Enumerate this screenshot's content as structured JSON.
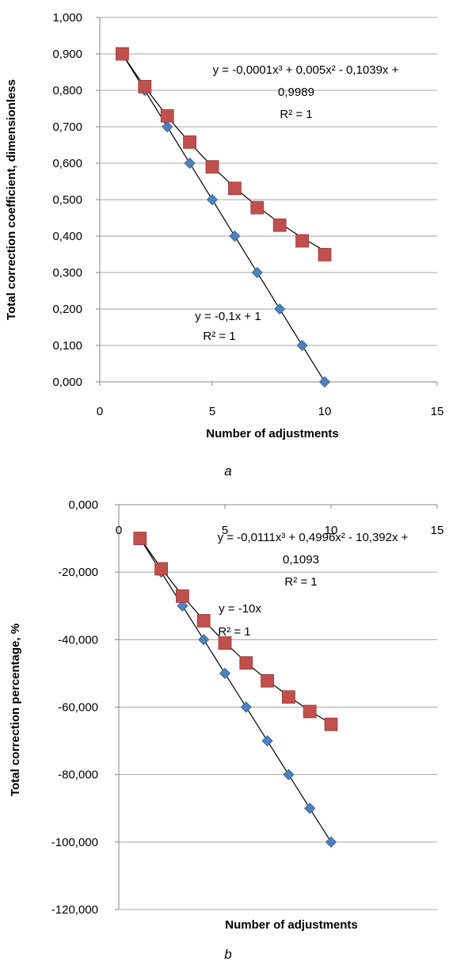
{
  "colors": {
    "linear_marker": "#4f81bd",
    "linear_marker_stroke": "#2f5f9a",
    "poly_marker": "#c0504d",
    "poly_marker_stroke": "#9a3b39",
    "trendline": "#000000",
    "gridline": "#a6a6a6",
    "axis": "#868686"
  },
  "chart_data": [
    {
      "type": "scatter",
      "caption": "a",
      "xlabel": "Number of adjustments",
      "ylabel": "Total correction coefficient, dimensionless",
      "xlim": [
        0,
        15
      ],
      "ylim": [
        0,
        1
      ],
      "x_ticks": [
        0,
        5,
        10,
        15
      ],
      "y_ticks": [
        0,
        0.1,
        0.2,
        0.3,
        0.4,
        0.5,
        0.6,
        0.7,
        0.8,
        0.9,
        1.0
      ],
      "x_tick_labels": [
        "0",
        "5",
        "10",
        "15"
      ],
      "y_tick_labels": [
        "0,000",
        "0,100",
        "0,200",
        "0,300",
        "0,400",
        "0,500",
        "0,600",
        "0,700",
        "0,800",
        "0,900",
        "1,000"
      ],
      "grid": "horizontal",
      "series": [
        {
          "marker": "diamond",
          "x": [
            1,
            2,
            3,
            4,
            5,
            6,
            7,
            8,
            9,
            10
          ],
          "y": [
            0.9,
            0.8,
            0.7,
            0.6,
            0.5,
            0.4,
            0.3,
            0.2,
            0.1,
            0.0
          ],
          "trendline": {
            "kind": "linear",
            "coeffs": [
              -0.1,
              1
            ]
          },
          "annotation": [
            "y = -0,1x + 1",
            "R² = 1"
          ]
        },
        {
          "marker": "square",
          "x": [
            1,
            2,
            3,
            4,
            5,
            6,
            7,
            8,
            9,
            10
          ],
          "y": [
            0.9,
            0.81,
            0.73,
            0.658,
            0.59,
            0.531,
            0.478,
            0.43,
            0.387,
            0.349
          ],
          "trendline": {
            "kind": "poly3",
            "coeffs": [
              -0.0001,
              0.005,
              -0.1039,
              0.9989
            ]
          },
          "annotation": [
            "y = -0,0001x³ + 0,005x² - 0,1039x +",
            "0,9989",
            "R² = 1"
          ]
        }
      ]
    },
    {
      "type": "scatter",
      "caption": "b",
      "xlabel": "Number of adjustments",
      "ylabel": "Total correction percentage, %",
      "xlim": [
        0,
        15
      ],
      "ylim": [
        -120,
        0
      ],
      "x_ticks": [
        0,
        5,
        10,
        15
      ],
      "y_ticks": [
        0,
        -20,
        -40,
        -60,
        -80,
        -100,
        -120
      ],
      "x_tick_labels": [
        "0",
        "5",
        "10",
        "15"
      ],
      "y_tick_labels": [
        "0,000",
        "-20,000",
        "-40,000",
        "-60,000",
        "-80,000",
        "-100,000",
        "-120,000"
      ],
      "grid": "horizontal",
      "series": [
        {
          "marker": "diamond",
          "x": [
            1,
            2,
            3,
            4,
            5,
            6,
            7,
            8,
            9,
            10
          ],
          "y": [
            -10,
            -20,
            -30,
            -40,
            -50,
            -60,
            -70,
            -80,
            -90,
            -100
          ],
          "trendline": {
            "kind": "linear",
            "coeffs": [
              -10,
              0
            ]
          },
          "annotation": [
            "y = -10x",
            "R² = 1"
          ]
        },
        {
          "marker": "square",
          "x": [
            1,
            2,
            3,
            4,
            5,
            6,
            7,
            8,
            9,
            10
          ],
          "y": [
            -10,
            -19,
            -27.1,
            -34.4,
            -41,
            -46.9,
            -52.2,
            -57,
            -61.3,
            -65.1
          ],
          "trendline": {
            "kind": "poly3",
            "coeffs": [
              -0.0111,
              0.4996,
              -10.392,
              0.1093
            ]
          },
          "annotation": [
            "y = -0,0111x³ + 0,4996x² - 10,392x +",
            "0,1093",
            "R² = 1"
          ]
        }
      ]
    }
  ]
}
